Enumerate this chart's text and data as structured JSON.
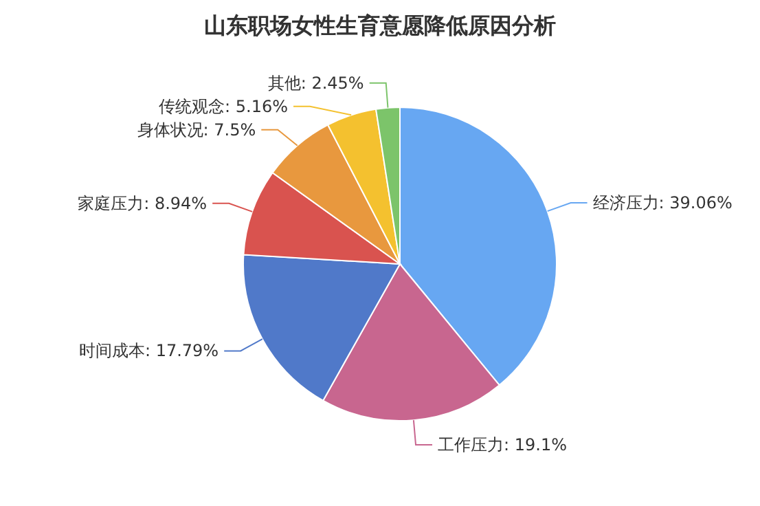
{
  "chart_data": {
    "type": "pie",
    "title": "山东职场女性生育意愿降低原因分析",
    "categories": [
      "经济压力",
      "工作压力",
      "时间成本",
      "家庭压力",
      "身体状况",
      "传统观念",
      "其他"
    ],
    "values": [
      39.06,
      19.1,
      17.79,
      8.94,
      7.5,
      5.16,
      2.45
    ],
    "value_labels": [
      "39.06%",
      "19.1%",
      "17.79%",
      "8.94%",
      "7.5%",
      "5.16%",
      "2.45%"
    ],
    "colors": [
      "#67a7f2",
      "#c8668f",
      "#5079c9",
      "#d9534f",
      "#e8983e",
      "#f4c12f",
      "#7cc46a"
    ]
  }
}
